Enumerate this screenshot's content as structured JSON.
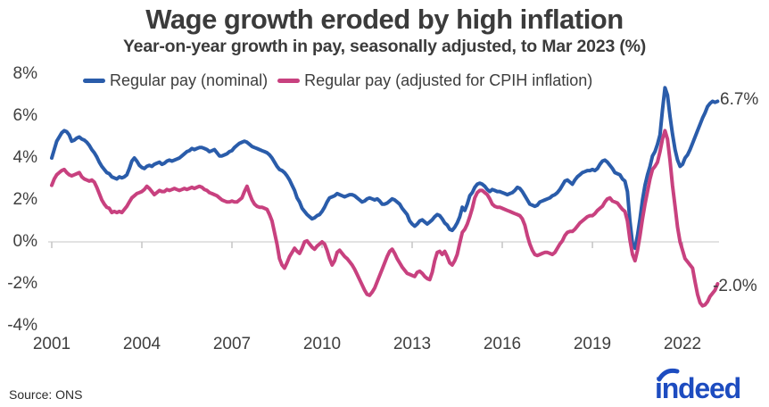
{
  "header": {
    "title": "Wage growth eroded by high inflation",
    "subtitle": "Year-on-year growth in pay, seasonally adjusted, to Mar 2023 (%)"
  },
  "footer": {
    "source": "Source: ONS",
    "logo": "indeed"
  },
  "colors": {
    "nominal_line": "#2a5caa",
    "real_line": "#c8417f",
    "zero_line": "#d9d9d9",
    "tick": "#c4c4c4",
    "text": "#3d3d3d",
    "logo_blue": "#1d4cc0"
  },
  "chart_data": {
    "type": "line",
    "title": "Wage growth eroded by high inflation",
    "subtitle": "Year-on-year growth in pay, seasonally adjusted, to Mar 2023 (%)",
    "unit": "%",
    "frequency": "monthly",
    "x_start": 2001.0,
    "x_end": 2023.25,
    "ylim": [
      -4,
      8
    ],
    "y_tick_values": [
      8,
      6,
      4,
      2,
      0,
      -2,
      -4
    ],
    "y_tick_labels": [
      "8%",
      "6%",
      "4%",
      "2%",
      "0%",
      "-2%",
      "-4%"
    ],
    "x_tick_years": [
      2001,
      2004,
      2007,
      2010,
      2013,
      2016,
      2019,
      2022
    ],
    "x_tick_labels": [
      "2001",
      "2004",
      "2007",
      "2010",
      "2013",
      "2016",
      "2019",
      "2022"
    ],
    "grid": "zero-line-only",
    "legend_position": "top-left",
    "series": [
      {
        "name": "Regular pay (nominal)",
        "color": "#2a5caa",
        "end_label": "6.7%",
        "values": [
          4.0,
          4.4,
          4.8,
          5.0,
          5.2,
          5.3,
          5.25,
          5.1,
          4.8,
          4.85,
          4.95,
          5.0,
          4.9,
          4.85,
          4.75,
          4.6,
          4.4,
          4.25,
          4.05,
          3.8,
          3.6,
          3.45,
          3.3,
          3.25,
          3.1,
          3.05,
          3.0,
          3.1,
          3.05,
          3.1,
          3.2,
          3.5,
          3.85,
          4.0,
          3.85,
          3.65,
          3.55,
          3.5,
          3.6,
          3.65,
          3.6,
          3.7,
          3.75,
          3.8,
          3.7,
          3.75,
          3.85,
          3.9,
          3.85,
          3.9,
          3.95,
          4.0,
          4.1,
          4.2,
          4.3,
          4.35,
          4.45,
          4.4,
          4.45,
          4.5,
          4.5,
          4.45,
          4.4,
          4.3,
          4.35,
          4.4,
          4.25,
          4.1,
          4.1,
          4.15,
          4.2,
          4.3,
          4.35,
          4.5,
          4.6,
          4.7,
          4.75,
          4.8,
          4.75,
          4.65,
          4.55,
          4.5,
          4.45,
          4.4,
          4.35,
          4.3,
          4.25,
          4.15,
          4.0,
          3.8,
          3.6,
          3.45,
          3.4,
          3.3,
          3.15,
          2.95,
          2.7,
          2.45,
          2.1,
          1.9,
          1.6,
          1.45,
          1.3,
          1.2,
          1.1,
          1.15,
          1.25,
          1.3,
          1.45,
          1.65,
          1.9,
          2.1,
          2.15,
          2.2,
          2.3,
          2.25,
          2.2,
          2.15,
          2.2,
          2.25,
          2.25,
          2.2,
          2.1,
          2.0,
          1.9,
          1.95,
          2.05,
          2.1,
          2.05,
          2.0,
          2.05,
          1.95,
          1.8,
          1.8,
          1.85,
          1.95,
          2.05,
          2.0,
          1.9,
          1.8,
          1.6,
          1.45,
          1.3,
          1.0,
          0.85,
          0.75,
          0.85,
          1.0,
          1.05,
          0.95,
          0.85,
          0.95,
          1.05,
          1.2,
          1.3,
          1.25,
          1.1,
          0.9,
          0.8,
          0.6,
          0.55,
          0.7,
          0.9,
          1.2,
          1.65,
          1.5,
          1.8,
          2.2,
          2.35,
          2.6,
          2.75,
          2.8,
          2.75,
          2.65,
          2.5,
          2.4,
          2.5,
          2.45,
          2.4,
          2.4,
          2.35,
          2.3,
          2.25,
          2.3,
          2.35,
          2.45,
          2.6,
          2.55,
          2.4,
          2.2,
          2.0,
          1.8,
          1.75,
          1.7,
          1.75,
          1.9,
          1.95,
          2.0,
          2.05,
          2.1,
          2.2,
          2.25,
          2.35,
          2.5,
          2.7,
          2.9,
          2.95,
          2.85,
          2.75,
          2.95,
          3.1,
          3.2,
          3.3,
          3.35,
          3.4,
          3.4,
          3.45,
          3.4,
          3.5,
          3.7,
          3.85,
          3.9,
          3.8,
          3.65,
          3.5,
          3.3,
          3.25,
          3.2,
          3.0,
          2.9,
          2.4,
          1.0,
          -0.1,
          -0.3,
          0.3,
          1.1,
          2.0,
          2.7,
          3.2,
          3.6,
          4.1,
          4.3,
          4.65,
          5.1,
          6.3,
          7.35,
          7.0,
          6.0,
          5.15,
          4.4,
          3.9,
          3.6,
          3.7,
          4.0,
          4.15,
          4.4,
          4.7,
          5.0,
          5.3,
          5.6,
          5.9,
          6.15,
          6.45,
          6.6,
          6.7,
          6.65,
          6.7
        ]
      },
      {
        "name": "Regular pay (adjusted for CPIH inflation)",
        "color": "#c8417f",
        "end_label": "-2.0%",
        "values": [
          2.7,
          3.0,
          3.2,
          3.3,
          3.4,
          3.45,
          3.3,
          3.2,
          3.15,
          3.2,
          3.25,
          3.3,
          3.1,
          3.0,
          2.95,
          2.9,
          2.95,
          2.85,
          2.6,
          2.3,
          2.0,
          1.8,
          1.65,
          1.6,
          1.4,
          1.45,
          1.4,
          1.45,
          1.4,
          1.55,
          1.7,
          1.9,
          2.1,
          2.2,
          2.3,
          2.35,
          2.4,
          2.5,
          2.65,
          2.55,
          2.4,
          2.25,
          2.35,
          2.45,
          2.4,
          2.4,
          2.5,
          2.45,
          2.5,
          2.55,
          2.5,
          2.45,
          2.5,
          2.55,
          2.5,
          2.55,
          2.6,
          2.55,
          2.6,
          2.65,
          2.6,
          2.5,
          2.45,
          2.35,
          2.3,
          2.25,
          2.2,
          2.1,
          2.0,
          1.95,
          1.9,
          1.9,
          1.95,
          1.9,
          1.9,
          2.0,
          2.1,
          2.4,
          2.65,
          2.3,
          2.0,
          1.8,
          1.7,
          1.65,
          1.65,
          1.6,
          1.55,
          1.3,
          1.0,
          0.45,
          -0.1,
          -0.8,
          -1.1,
          -1.25,
          -1.0,
          -0.7,
          -0.5,
          -0.3,
          -0.45,
          -0.55,
          -0.3,
          0.0,
          0.05,
          -0.1,
          -0.25,
          -0.35,
          -0.2,
          -0.1,
          0.0,
          -0.1,
          -0.4,
          -0.8,
          -1.1,
          -0.9,
          -0.5,
          -0.4,
          -0.55,
          -0.7,
          -0.8,
          -0.95,
          -1.1,
          -1.3,
          -1.55,
          -1.8,
          -2.05,
          -2.3,
          -2.5,
          -2.55,
          -2.4,
          -2.2,
          -1.9,
          -1.6,
          -1.3,
          -1.0,
          -0.7,
          -0.45,
          -0.35,
          -0.55,
          -0.8,
          -1.0,
          -1.2,
          -1.35,
          -1.5,
          -1.55,
          -1.6,
          -1.65,
          -1.45,
          -1.4,
          -1.5,
          -1.65,
          -1.75,
          -1.8,
          -1.45,
          -0.9,
          -0.5,
          -0.45,
          -0.6,
          -0.45,
          -0.7,
          -1.0,
          -1.1,
          -0.9,
          -0.6,
          -0.05,
          0.45,
          0.6,
          0.85,
          1.2,
          1.6,
          2.1,
          2.35,
          2.45,
          2.45,
          2.35,
          2.25,
          2.05,
          1.8,
          1.7,
          1.65,
          1.65,
          1.6,
          1.55,
          1.5,
          1.45,
          1.4,
          1.35,
          1.3,
          1.25,
          1.1,
          0.8,
          0.3,
          -0.1,
          -0.4,
          -0.6,
          -0.65,
          -0.6,
          -0.55,
          -0.5,
          -0.5,
          -0.55,
          -0.6,
          -0.5,
          -0.3,
          -0.1,
          0.05,
          0.3,
          0.45,
          0.5,
          0.5,
          0.6,
          0.75,
          0.9,
          1.0,
          1.1,
          1.2,
          1.25,
          1.25,
          1.35,
          1.5,
          1.6,
          1.7,
          1.9,
          2.05,
          2.1,
          1.95,
          1.9,
          1.85,
          1.7,
          1.55,
          1.45,
          1.0,
          0.1,
          -0.6,
          -0.9,
          -0.4,
          0.3,
          1.1,
          1.8,
          2.4,
          3.0,
          3.45,
          3.6,
          3.8,
          4.3,
          4.9,
          5.3,
          4.9,
          3.9,
          2.7,
          1.7,
          0.7,
          0.0,
          -0.4,
          -0.8,
          -0.95,
          -1.1,
          -1.25,
          -1.9,
          -2.5,
          -2.9,
          -3.05,
          -3.0,
          -2.85,
          -2.6,
          -2.45,
          -2.3,
          -2.0
        ]
      }
    ]
  }
}
